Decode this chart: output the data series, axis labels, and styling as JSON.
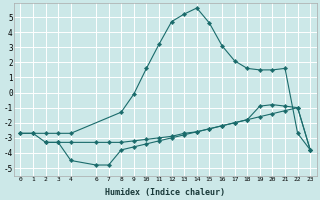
{
  "xlabel": "Humidex (Indice chaleur)",
  "background_color": "#cce8e8",
  "grid_color": "#ffffff",
  "line_color": "#1a6b6b",
  "xlim": [
    -0.5,
    23.5
  ],
  "ylim": [
    -5.5,
    5.9
  ],
  "xticks": [
    0,
    1,
    2,
    3,
    4,
    6,
    7,
    8,
    9,
    10,
    11,
    12,
    13,
    14,
    15,
    16,
    17,
    18,
    19,
    20,
    21,
    22,
    23
  ],
  "xtick_labels": [
    "0",
    "1",
    "2",
    "3",
    "4",
    "6",
    "7",
    "8",
    "9",
    "10",
    "11",
    "12",
    "13",
    "14",
    "15",
    "16",
    "17",
    "18",
    "19",
    "20",
    "21",
    "22",
    "23"
  ],
  "yticks": [
    -5,
    -4,
    -3,
    -2,
    -1,
    0,
    1,
    2,
    3,
    4,
    5
  ],
  "line1_x": [
    0,
    1,
    2,
    3,
    4,
    8,
    9,
    10,
    11,
    12,
    13,
    14,
    15,
    16,
    17,
    18,
    19,
    20,
    21,
    22,
    23
  ],
  "line1_y": [
    -2.7,
    -2.7,
    -2.7,
    -2.7,
    -2.7,
    -1.3,
    -0.1,
    1.6,
    3.2,
    4.7,
    5.2,
    5.6,
    4.6,
    3.1,
    2.1,
    1.6,
    1.5,
    1.5,
    1.6,
    -2.7,
    -3.8
  ],
  "line2_x": [
    0,
    1,
    2,
    3,
    4,
    6,
    7,
    8,
    9,
    10,
    11,
    12,
    13,
    14,
    15,
    16,
    17,
    18,
    19,
    20,
    21,
    22,
    23
  ],
  "line2_y": [
    -2.7,
    -2.7,
    -3.3,
    -3.3,
    -3.3,
    -3.3,
    -3.3,
    -3.3,
    -3.2,
    -3.1,
    -3.0,
    -2.9,
    -2.7,
    -2.6,
    -2.4,
    -2.2,
    -2.0,
    -1.8,
    -0.9,
    -0.8,
    -0.9,
    -1.0,
    -3.8
  ],
  "line3_x": [
    2,
    3,
    4,
    6,
    7,
    8,
    9,
    10,
    11,
    12,
    13,
    14,
    15,
    16,
    17,
    18,
    19,
    20,
    21,
    22,
    23
  ],
  "line3_y": [
    -3.3,
    -3.3,
    -4.5,
    -4.8,
    -4.8,
    -3.8,
    -3.6,
    -3.4,
    -3.2,
    -3.0,
    -2.8,
    -2.6,
    -2.4,
    -2.2,
    -2.0,
    -1.8,
    -1.6,
    -1.4,
    -1.2,
    -1.0,
    -3.8
  ]
}
